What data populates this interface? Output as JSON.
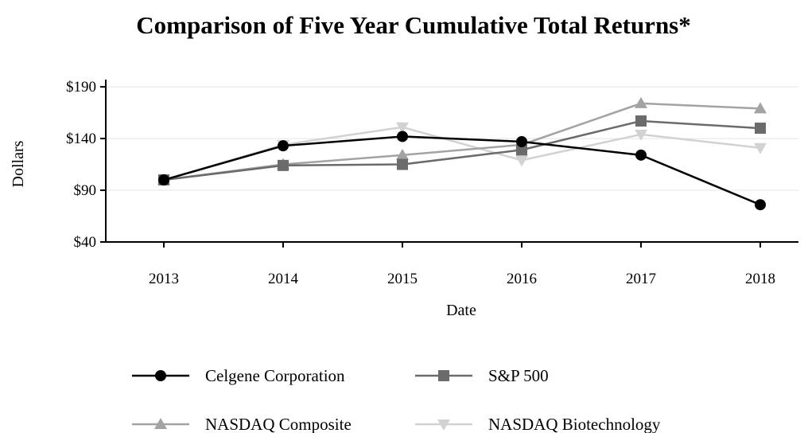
{
  "chart_data": {
    "type": "line",
    "title": "Comparison of Five Year Cumulative Total Returns*",
    "xlabel": "Date",
    "ylabel": "Dollars",
    "categories": [
      "2013",
      "2014",
      "2015",
      "2016",
      "2017",
      "2018"
    ],
    "yticks": [
      "$40",
      "$90",
      "$140",
      "$190"
    ],
    "ytick_values": [
      40,
      90,
      140,
      190
    ],
    "ylim": [
      40,
      197
    ],
    "grid": "horizontal",
    "legend_position": "bottom",
    "series": [
      {
        "name": "Celgene Corporation",
        "marker": "circle",
        "color": "#000000",
        "values": [
          100,
          133,
          142,
          137,
          124,
          76
        ]
      },
      {
        "name": "S&P 500",
        "marker": "square",
        "color": "#6b6b6b",
        "values": [
          100,
          114,
          115,
          129,
          157,
          150
        ]
      },
      {
        "name": "NASDAQ Composite",
        "marker": "triangle-up",
        "color": "#a3a3a3",
        "values": [
          100,
          115,
          124,
          134,
          174,
          169
        ]
      },
      {
        "name": "NASDAQ Biotechnology",
        "marker": "triangle-down",
        "color": "#d2d2d2",
        "values": [
          100,
          134,
          151,
          119,
          144,
          131
        ]
      }
    ]
  }
}
